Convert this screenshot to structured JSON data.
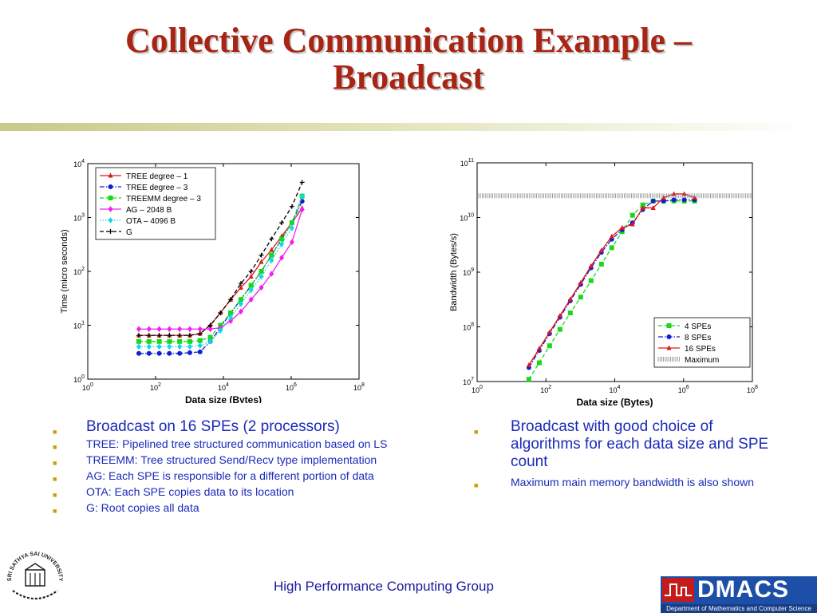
{
  "slide": {
    "title_line1": "Collective Communication Example –",
    "title_line2": "Broadcast"
  },
  "colors": {
    "title": "#a82515",
    "bullet_text": "#1a2ab8",
    "bullet_marker": "#c8a000",
    "dmacs_bg": "#1d4fa8"
  },
  "left_bullets": [
    "Broadcast on 16 SPEs (2 processors)",
    "TREE: Pipelined tree structured communication based on LS",
    "TREEMM: Tree structured Send/Recv type implementation",
    "AG: Each SPE is responsible for a different portion of data",
    "OTA: Each SPE copies data to its location",
    "G: Root copies all data"
  ],
  "right_bullets": [
    "Broadcast with good choice of algorithms for each data size and SPE count",
    "Maximum main memory bandwidth is also shown"
  ],
  "footer": {
    "group": "High Performance Computing Group",
    "logo_text": "DMACS",
    "logo_subtitle": "Department of Mathematics and Computer Science",
    "seal_text": "SRI SATHYA SAI UNIVERSITY"
  },
  "chart_data": [
    {
      "type": "line",
      "xscale": "log",
      "yscale": "log",
      "xlim": [
        1,
        100000000
      ],
      "ylim": [
        1,
        10000
      ],
      "xticks": [
        "10^0",
        "10^2",
        "10^4",
        "10^6",
        "10^8"
      ],
      "yticks": [
        "10^0",
        "10^1",
        "10^2",
        "10^3",
        "10^4"
      ],
      "xlabel": "Data size (Bytes)",
      "ylabel": "Time (micro seconds)",
      "legend_position": "top-left",
      "x": [
        32,
        64,
        128,
        256,
        512,
        1024,
        2048,
        4096,
        8192,
        16384,
        32768,
        65536,
        131072,
        262144,
        524288,
        1048576,
        2097152
      ],
      "series": [
        {
          "name": "TREE degree – 1",
          "color": "#e0141c",
          "marker": "triangle",
          "dash": "solid",
          "values": [
            6.5,
            6.5,
            6.5,
            6.5,
            6.5,
            6.5,
            7,
            10,
            17,
            30,
            50,
            80,
            150,
            250,
            450,
            800,
            1500
          ]
        },
        {
          "name": "TREE degree – 3",
          "color": "#1020d0",
          "marker": "circle",
          "dash": "dashdot",
          "values": [
            3,
            3,
            3,
            3,
            3,
            3.1,
            3.2,
            5,
            9,
            17,
            30,
            55,
            100,
            200,
            400,
            800,
            2000
          ]
        },
        {
          "name": "TREEMM degree – 3",
          "color": "#18d818",
          "marker": "square",
          "dash": "dashed",
          "values": [
            5,
            5,
            5,
            5,
            5,
            5,
            5.2,
            6,
            10,
            17,
            30,
            55,
            100,
            200,
            400,
            800,
            2500
          ]
        },
        {
          "name": "AG – 2048 B",
          "color": "#f020f0",
          "marker": "diamond",
          "dash": "solid",
          "values": [
            8.5,
            8.5,
            8.5,
            8.5,
            8.5,
            8.5,
            8.5,
            8.5,
            9,
            12,
            18,
            30,
            50,
            90,
            180,
            350,
            1400
          ]
        },
        {
          "name": "OTA – 4096 B",
          "color": "#10d8e0",
          "marker": "diamond",
          "dash": "dotted",
          "values": [
            4,
            4,
            4,
            4,
            4,
            4,
            4.2,
            5,
            8,
            14,
            25,
            45,
            80,
            160,
            320,
            640,
            2500
          ]
        },
        {
          "name": "G",
          "color": "#000000",
          "marker": "plus",
          "dash": "dashed",
          "values": [
            6.5,
            6.5,
            6.5,
            6.5,
            6.5,
            6.5,
            7,
            10,
            17,
            30,
            60,
            100,
            200,
            400,
            800,
            1600,
            4500
          ]
        }
      ]
    },
    {
      "type": "line",
      "xscale": "log",
      "yscale": "log",
      "xlim": [
        1,
        100000000
      ],
      "ylim": [
        10000000,
        100000000000
      ],
      "xticks": [
        "10^0",
        "10^2",
        "10^4",
        "10^6",
        "10^8"
      ],
      "yticks": [
        "10^7",
        "10^8",
        "10^9",
        "10^10",
        "10^11"
      ],
      "xlabel": "Data size (Bytes)",
      "ylabel": "Bandwidth (Bytes/s)",
      "legend_position": "bottom-right",
      "x": [
        32,
        64,
        128,
        256,
        512,
        1024,
        2048,
        4096,
        8192,
        16384,
        32768,
        65536,
        131072,
        262144,
        524288,
        1048576,
        2097152
      ],
      "series": [
        {
          "name": "4 SPEs",
          "color": "#18d818",
          "marker": "square",
          "dash": "dashed",
          "values": [
            11000000,
            22000000,
            45000000,
            90000000,
            180000000,
            350000000,
            700000000,
            1400000000,
            2800000000,
            5500000000,
            11000000000,
            17000000000,
            20000000000,
            20000000000,
            20000000000,
            20000000000,
            20000000000
          ]
        },
        {
          "name": "8 SPEs",
          "color": "#1020d0",
          "marker": "circle",
          "dash": "dashdot",
          "values": [
            18000000,
            37000000,
            75000000,
            150000000,
            300000000,
            600000000,
            1200000000,
            2300000000,
            4000000000,
            6000000000,
            8000000000,
            14000000000,
            20000000000,
            20000000000,
            21000000000,
            21000000000,
            21000000000
          ]
        },
        {
          "name": "16 SPEs",
          "color": "#e0141c",
          "marker": "triangle",
          "dash": "solid",
          "values": [
            20000000,
            40000000,
            80000000,
            160000000,
            320000000,
            640000000,
            1300000000,
            2500000000,
            4500000000,
            6500000000,
            7500000000,
            15000000000,
            15000000000,
            23000000000,
            27000000000,
            27000000000,
            23000000000
          ]
        },
        {
          "name": "Maximum",
          "color": "#888888",
          "marker": "none",
          "dash": "hatched",
          "constant": 25000000000
        }
      ]
    }
  ]
}
